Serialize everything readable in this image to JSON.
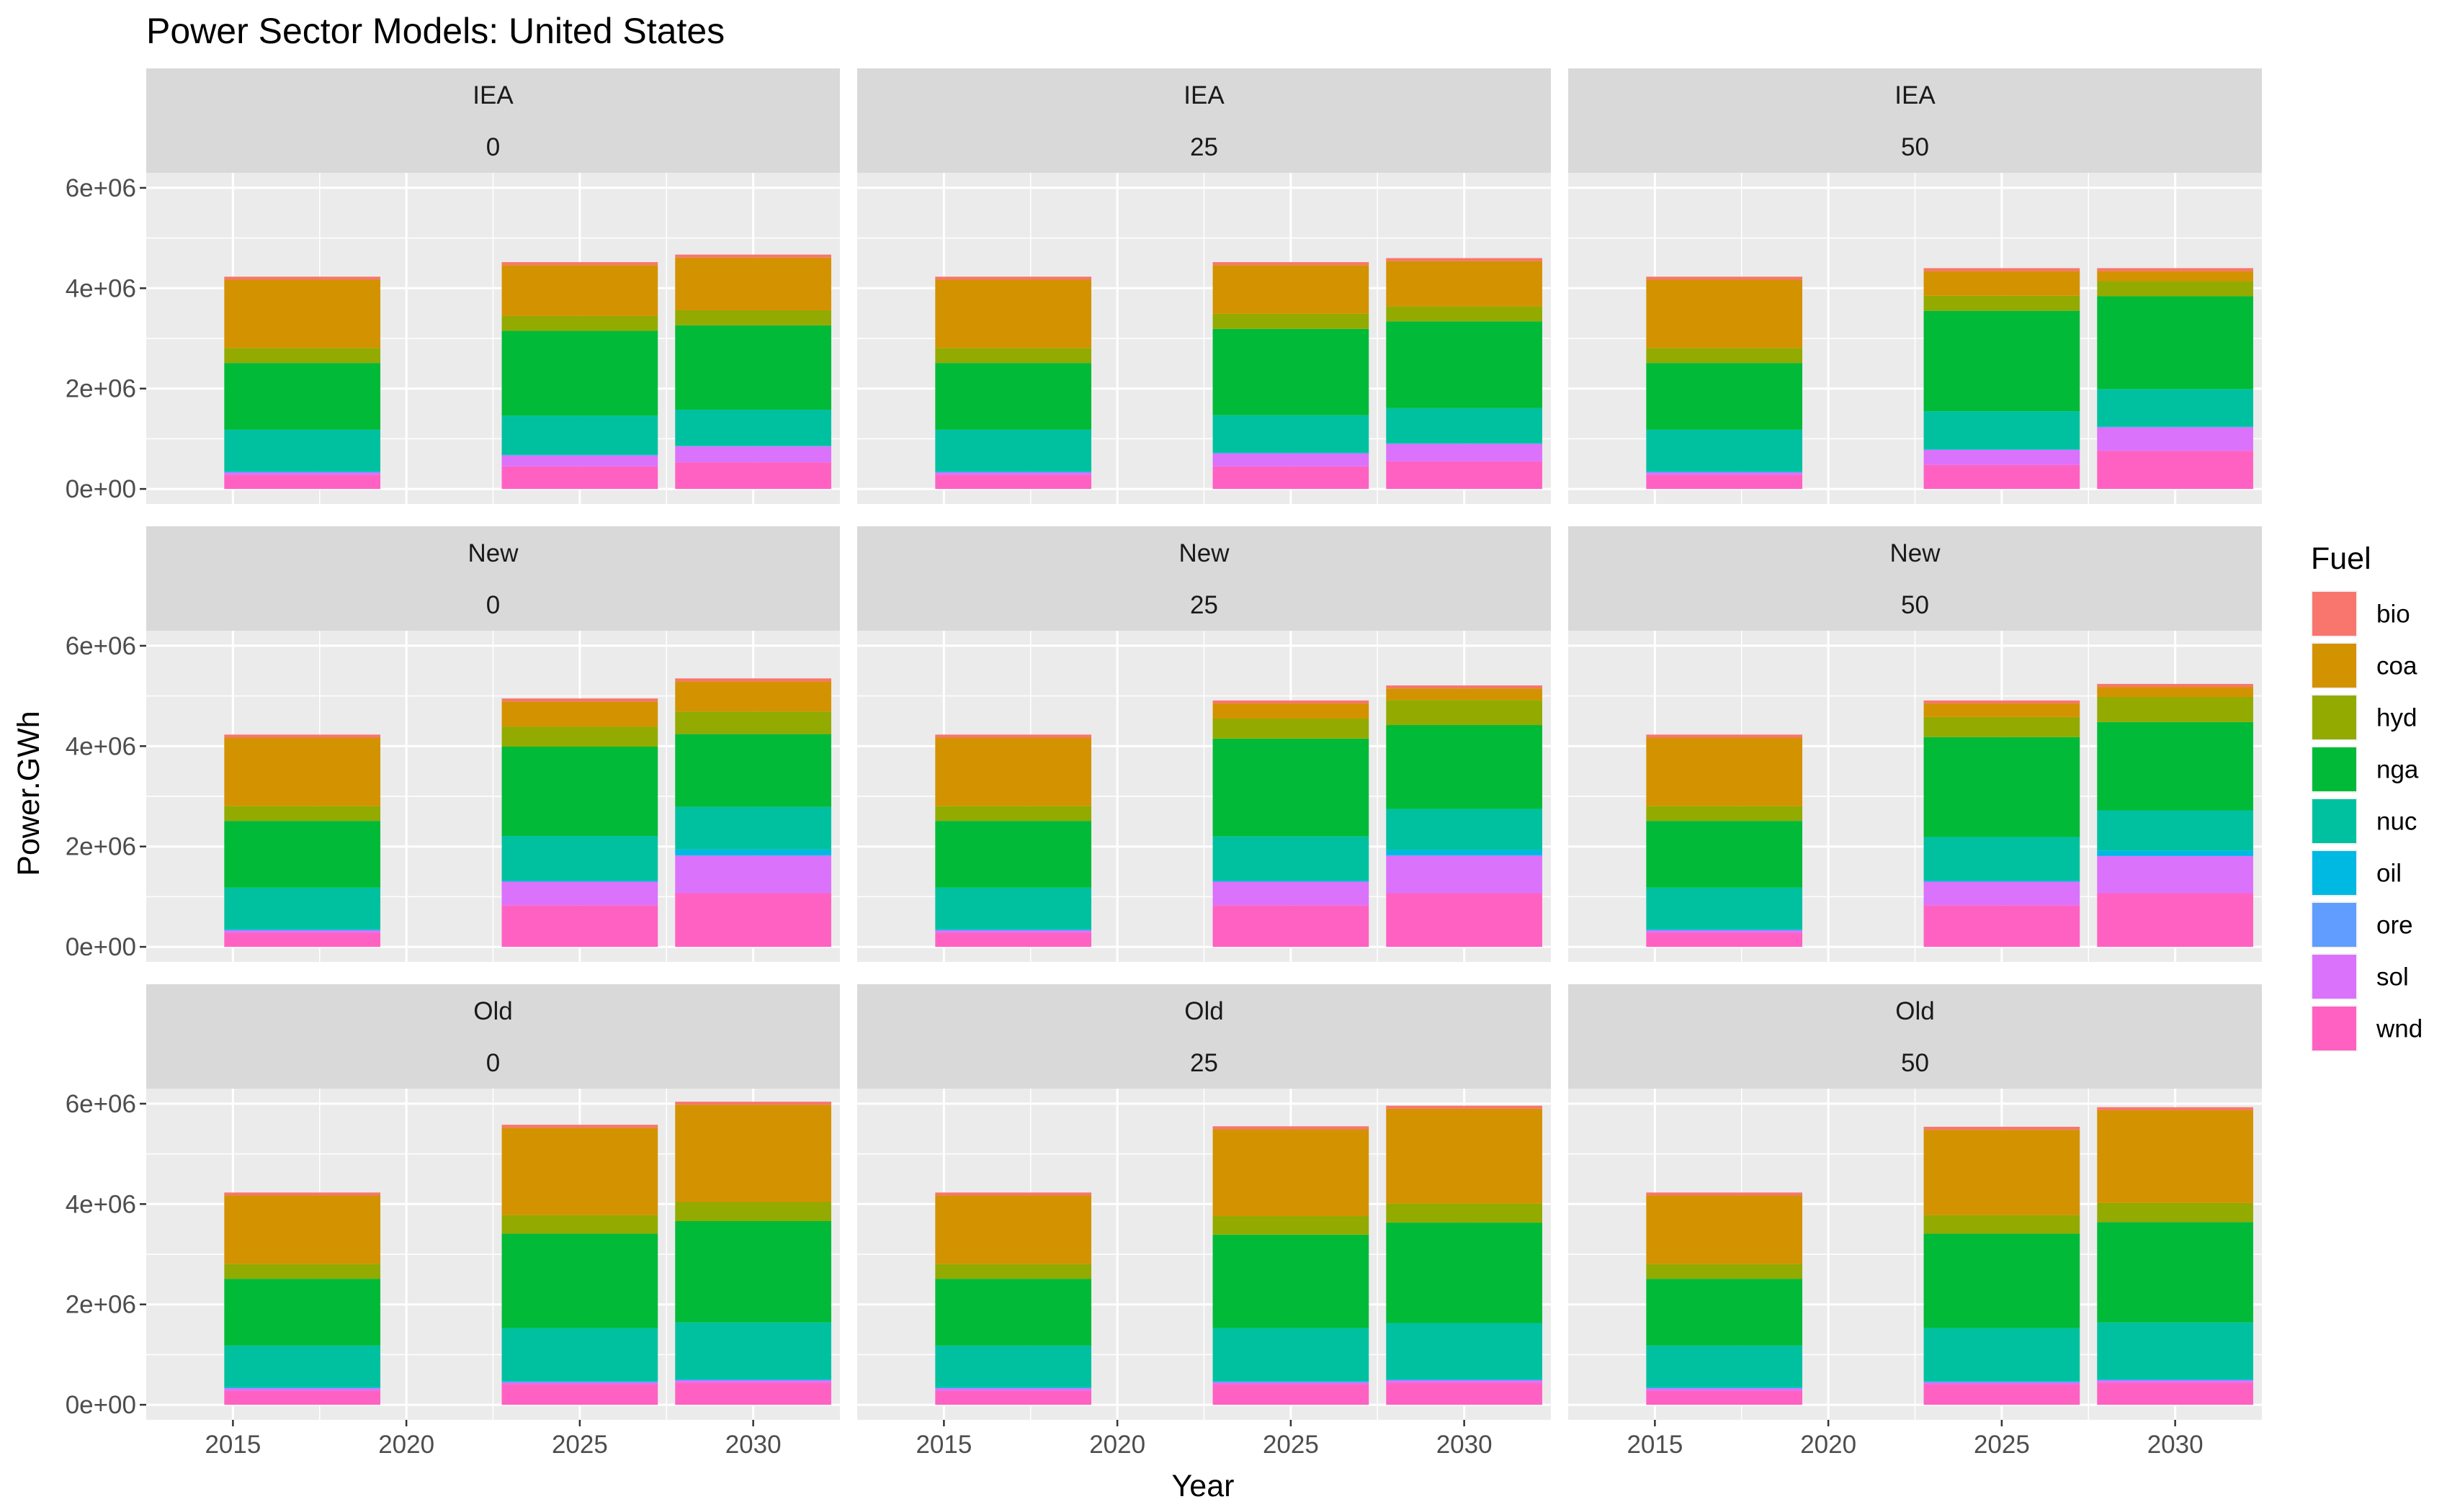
{
  "chart_data": {
    "type": "bar",
    "stacked": true,
    "faceted": true,
    "title": "Power Sector Models: United States",
    "xlabel": "Year",
    "ylabel": "Power.GWh",
    "x_ticks": [
      2015,
      2020,
      2025,
      2030
    ],
    "x_range": [
      2012.5,
      2032.5
    ],
    "y_ticks": [
      0,
      2000000,
      4000000,
      6000000
    ],
    "y_tick_labels": [
      "0e+00",
      "2e+06",
      "4e+06",
      "6e+06"
    ],
    "y_range": [
      -300000,
      6300000
    ],
    "grid": true,
    "legend": {
      "title": "Fuel",
      "position": "right",
      "items": [
        {
          "key": "bio",
          "label": "bio",
          "color": "#F8766D"
        },
        {
          "key": "coa",
          "label": "coa",
          "color": "#D39200"
        },
        {
          "key": "hyd",
          "label": "hyd",
          "color": "#93AA00"
        },
        {
          "key": "nga",
          "label": "nga",
          "color": "#00BA38"
        },
        {
          "key": "nuc",
          "label": "nuc",
          "color": "#00C19F"
        },
        {
          "key": "oil",
          "label": "oil",
          "color": "#00B9E3"
        },
        {
          "key": "ore",
          "label": "ore",
          "color": "#619CFF"
        },
        {
          "key": "sol",
          "label": "sol",
          "color": "#DB72FB"
        },
        {
          "key": "wnd",
          "label": "wnd",
          "color": "#FF61C3"
        }
      ]
    },
    "stack_order": [
      "wnd",
      "sol",
      "ore",
      "oil",
      "nuc",
      "nga",
      "hyd",
      "coa",
      "bio"
    ],
    "row_labels": [
      "IEA",
      "New",
      "Old"
    ],
    "col_labels": [
      "0",
      "25",
      "50"
    ],
    "panels": [
      {
        "row": "IEA",
        "col": "0",
        "bars": [
          {
            "year": 2017,
            "wnd": 280000,
            "sol": 50000,
            "ore": 0,
            "oil": 20000,
            "nuc": 830000,
            "nga": 1330000,
            "hyd": 300000,
            "coa": 1360000,
            "bio": 60000
          },
          {
            "year": 2025,
            "wnd": 450000,
            "sol": 220000,
            "ore": 0,
            "oil": 10000,
            "nuc": 780000,
            "nga": 1690000,
            "hyd": 300000,
            "coa": 1010000,
            "bio": 60000
          },
          {
            "year": 2030,
            "wnd": 530000,
            "sol": 320000,
            "ore": 0,
            "oil": 10000,
            "nuc": 720000,
            "nga": 1680000,
            "hyd": 300000,
            "coa": 1050000,
            "bio": 60000
          }
        ]
      },
      {
        "row": "IEA",
        "col": "25",
        "bars": [
          {
            "year": 2017,
            "wnd": 280000,
            "sol": 50000,
            "ore": 0,
            "oil": 20000,
            "nuc": 830000,
            "nga": 1330000,
            "hyd": 300000,
            "coa": 1360000,
            "bio": 60000
          },
          {
            "year": 2025,
            "wnd": 450000,
            "sol": 260000,
            "ore": 0,
            "oil": 10000,
            "nuc": 750000,
            "nga": 1720000,
            "hyd": 300000,
            "coa": 970000,
            "bio": 60000
          },
          {
            "year": 2030,
            "wnd": 550000,
            "sol": 350000,
            "ore": 0,
            "oil": 10000,
            "nuc": 700000,
            "nga": 1730000,
            "hyd": 300000,
            "coa": 900000,
            "bio": 60000
          }
        ]
      },
      {
        "row": "IEA",
        "col": "50",
        "bars": [
          {
            "year": 2017,
            "wnd": 280000,
            "sol": 50000,
            "ore": 0,
            "oil": 20000,
            "nuc": 830000,
            "nga": 1330000,
            "hyd": 300000,
            "coa": 1360000,
            "bio": 60000
          },
          {
            "year": 2025,
            "wnd": 480000,
            "sol": 300000,
            "ore": 0,
            "oil": 10000,
            "nuc": 760000,
            "nga": 2000000,
            "hyd": 300000,
            "coa": 490000,
            "bio": 60000
          },
          {
            "year": 2030,
            "wnd": 760000,
            "sol": 470000,
            "ore": 0,
            "oil": 10000,
            "nuc": 750000,
            "nga": 1850000,
            "hyd": 300000,
            "coa": 200000,
            "bio": 60000
          }
        ]
      },
      {
        "row": "New",
        "col": "0",
        "bars": [
          {
            "year": 2017,
            "wnd": 280000,
            "sol": 50000,
            "ore": 0,
            "oil": 20000,
            "nuc": 830000,
            "nga": 1330000,
            "hyd": 300000,
            "coa": 1360000,
            "bio": 60000
          },
          {
            "year": 2025,
            "wnd": 830000,
            "sol": 470000,
            "ore": 0,
            "oil": 20000,
            "nuc": 890000,
            "nga": 1780000,
            "hyd": 400000,
            "coa": 500000,
            "bio": 60000
          },
          {
            "year": 2030,
            "wnd": 1070000,
            "sol": 750000,
            "ore": 0,
            "oil": 120000,
            "nuc": 850000,
            "nga": 1450000,
            "hyd": 450000,
            "coa": 600000,
            "bio": 60000
          }
        ]
      },
      {
        "row": "New",
        "col": "25",
        "bars": [
          {
            "year": 2017,
            "wnd": 280000,
            "sol": 50000,
            "ore": 0,
            "oil": 20000,
            "nuc": 830000,
            "nga": 1330000,
            "hyd": 300000,
            "coa": 1360000,
            "bio": 60000
          },
          {
            "year": 2025,
            "wnd": 830000,
            "sol": 470000,
            "ore": 0,
            "oil": 20000,
            "nuc": 880000,
            "nga": 1950000,
            "hyd": 400000,
            "coa": 300000,
            "bio": 60000
          },
          {
            "year": 2030,
            "wnd": 1070000,
            "sol": 750000,
            "ore": 0,
            "oil": 110000,
            "nuc": 820000,
            "nga": 1670000,
            "hyd": 500000,
            "coa": 230000,
            "bio": 60000
          }
        ]
      },
      {
        "row": "New",
        "col": "50",
        "bars": [
          {
            "year": 2017,
            "wnd": 280000,
            "sol": 50000,
            "ore": 0,
            "oil": 20000,
            "nuc": 830000,
            "nga": 1330000,
            "hyd": 300000,
            "coa": 1360000,
            "bio": 60000
          },
          {
            "year": 2025,
            "wnd": 830000,
            "sol": 470000,
            "ore": 0,
            "oil": 20000,
            "nuc": 870000,
            "nga": 1990000,
            "hyd": 400000,
            "coa": 270000,
            "bio": 60000
          },
          {
            "year": 2030,
            "wnd": 1070000,
            "sol": 740000,
            "ore": 0,
            "oil": 110000,
            "nuc": 800000,
            "nga": 1760000,
            "hyd": 500000,
            "coa": 200000,
            "bio": 60000
          }
        ]
      },
      {
        "row": "Old",
        "col": "0",
        "bars": [
          {
            "year": 2017,
            "wnd": 280000,
            "sol": 50000,
            "ore": 0,
            "oil": 20000,
            "nuc": 830000,
            "nga": 1330000,
            "hyd": 300000,
            "coa": 1360000,
            "bio": 60000
          },
          {
            "year": 2025,
            "wnd": 410000,
            "sol": 40000,
            "ore": 0,
            "oil": 20000,
            "nuc": 1060000,
            "nga": 1880000,
            "hyd": 370000,
            "coa": 1740000,
            "bio": 60000
          },
          {
            "year": 2030,
            "wnd": 440000,
            "sol": 50000,
            "ore": 0,
            "oil": 20000,
            "nuc": 1130000,
            "nga": 2020000,
            "hyd": 380000,
            "coa": 1940000,
            "bio": 60000
          }
        ]
      },
      {
        "row": "Old",
        "col": "25",
        "bars": [
          {
            "year": 2017,
            "wnd": 280000,
            "sol": 50000,
            "ore": 0,
            "oil": 20000,
            "nuc": 830000,
            "nga": 1330000,
            "hyd": 300000,
            "coa": 1360000,
            "bio": 60000
          },
          {
            "year": 2025,
            "wnd": 410000,
            "sol": 40000,
            "ore": 0,
            "oil": 20000,
            "nuc": 1060000,
            "nga": 1860000,
            "hyd": 370000,
            "coa": 1730000,
            "bio": 60000
          },
          {
            "year": 2030,
            "wnd": 440000,
            "sol": 50000,
            "ore": 0,
            "oil": 20000,
            "nuc": 1120000,
            "nga": 2000000,
            "hyd": 380000,
            "coa": 1890000,
            "bio": 60000
          }
        ]
      },
      {
        "row": "Old",
        "col": "50",
        "bars": [
          {
            "year": 2017,
            "wnd": 280000,
            "sol": 50000,
            "ore": 0,
            "oil": 20000,
            "nuc": 830000,
            "nga": 1330000,
            "hyd": 300000,
            "coa": 1360000,
            "bio": 60000
          },
          {
            "year": 2025,
            "wnd": 410000,
            "sol": 40000,
            "ore": 0,
            "oil": 20000,
            "nuc": 1060000,
            "nga": 1880000,
            "hyd": 370000,
            "coa": 1700000,
            "bio": 60000
          },
          {
            "year": 2030,
            "wnd": 440000,
            "sol": 50000,
            "ore": 0,
            "oil": 20000,
            "nuc": 1130000,
            "nga": 2000000,
            "hyd": 380000,
            "coa": 1850000,
            "bio": 60000
          }
        ]
      }
    ]
  }
}
